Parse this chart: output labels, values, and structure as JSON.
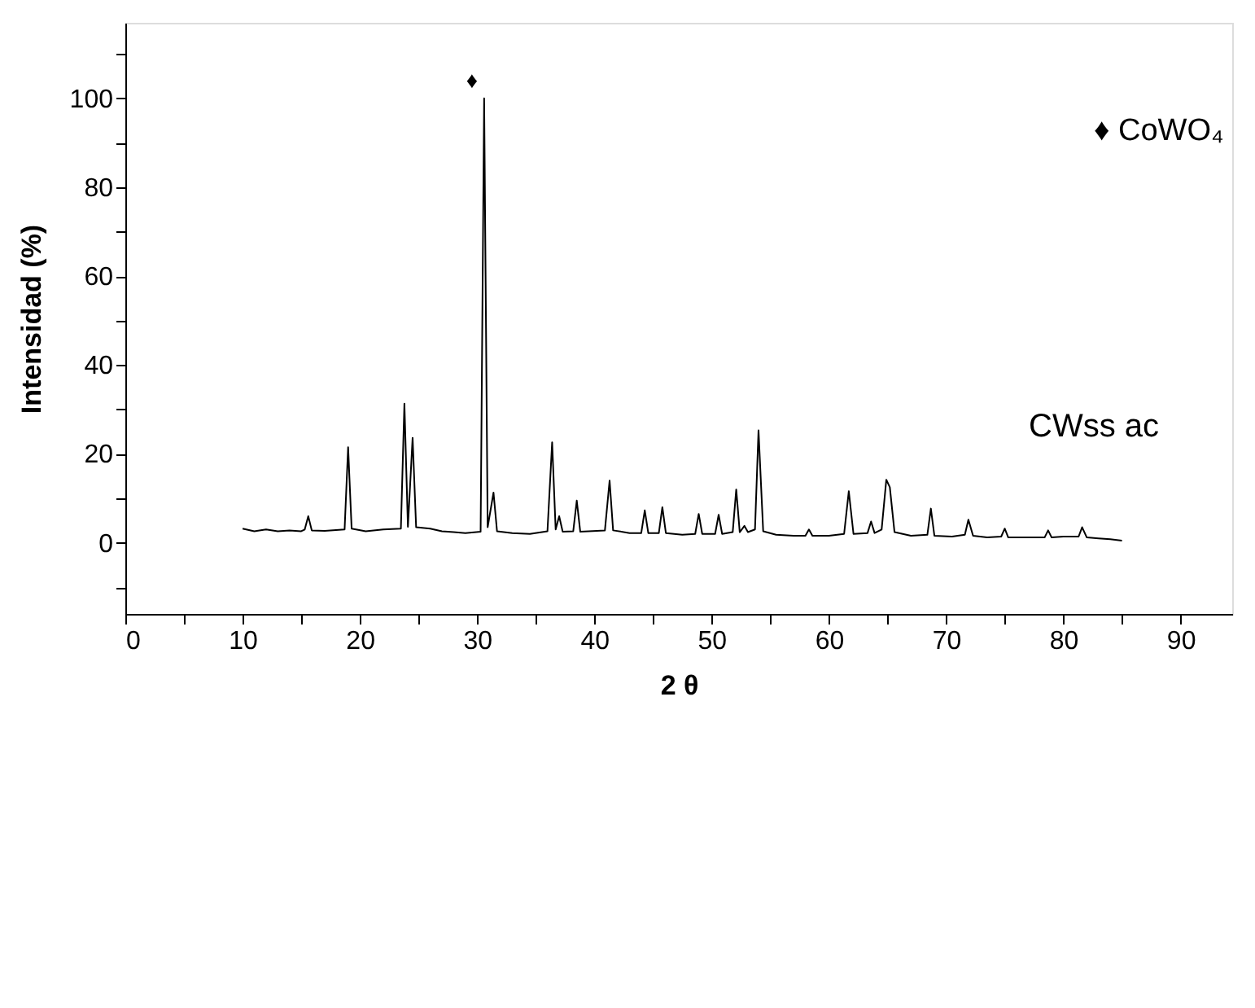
{
  "chart_data": {
    "type": "line",
    "xlabel": "2 θ",
    "ylabel": "Intensidad (%)",
    "xlim": [
      0,
      94.4
    ],
    "ylim": [
      -16,
      117
    ],
    "xticks": [
      0,
      {
        "value": 5,
        "label": null
      },
      10,
      {
        "value": 15,
        "label": null
      },
      20,
      {
        "value": 25,
        "label": null
      },
      30,
      {
        "value": 35,
        "label": null
      },
      40,
      {
        "value": 45,
        "label": null
      },
      50,
      {
        "value": 55,
        "label": null
      },
      60,
      {
        "value": 65,
        "label": null
      },
      70,
      {
        "value": 75,
        "label": null
      },
      80,
      {
        "value": 85,
        "label": null
      },
      90
    ],
    "yticks": [
      {
        "value": -10,
        "label": null
      },
      0,
      {
        "value": 10,
        "label": null
      },
      20,
      {
        "value": 30,
        "label": null
      },
      40,
      {
        "value": 50,
        "label": null
      },
      60,
      {
        "value": 70,
        "label": null
      },
      80,
      {
        "value": 90,
        "label": null
      },
      100,
      {
        "value": 110,
        "label": null
      }
    ],
    "grid": false,
    "marker": "none",
    "line_style": "solid",
    "annotations": [
      "♦",
      "♦ CoWO₄",
      "CWss ac"
    ],
    "series": [
      {
        "color": "#000000",
        "x": [
          10,
          11,
          12,
          13,
          14,
          15,
          15.3,
          15.6,
          15.9,
          17,
          18.7,
          19.0,
          19.3,
          20.5,
          22,
          23.5,
          23.8,
          24.1,
          24.5,
          24.8,
          26,
          27,
          28,
          29,
          30.3,
          30.6,
          30.9,
          31.4,
          31.7,
          33,
          34.5,
          36.0,
          36.4,
          36.7,
          37.0,
          37.3,
          38.2,
          38.5,
          38.8,
          40.9,
          41.3,
          41.6,
          43,
          44.0,
          44.3,
          44.6,
          45.5,
          45.8,
          46.1,
          47.5,
          48.6,
          48.9,
          49.2,
          50.3,
          50.6,
          50.9,
          51.8,
          52.1,
          52.4,
          52.8,
          53.1,
          53.7,
          54.0,
          54.4,
          55.5,
          57,
          58.0,
          58.3,
          58.6,
          60,
          61.3,
          61.7,
          62.1,
          63.3,
          63.6,
          63.9,
          64.5,
          64.9,
          65.2,
          65.6,
          67,
          68.4,
          68.7,
          69.0,
          70.5,
          71.6,
          71.9,
          72.3,
          73.5,
          74.7,
          75.0,
          75.3,
          77,
          78.4,
          78.7,
          79.0,
          80,
          81.3,
          81.6,
          82.0,
          83,
          84,
          85
        ],
        "values": [
          3.2,
          2.6,
          3.0,
          2.6,
          2.8,
          2.6,
          3.0,
          6,
          2.8,
          2.7,
          3.0,
          21.5,
          3.2,
          2.6,
          3.0,
          3.2,
          31.3,
          3.6,
          23.6,
          3.5,
          3.2,
          2.6,
          2.4,
          2.2,
          2.5,
          100,
          3.5,
          11.3,
          2.6,
          2.2,
          2.0,
          2.6,
          22.6,
          3.0,
          6,
          2.5,
          2.6,
          9.5,
          2.5,
          2.8,
          14,
          2.8,
          2.2,
          2.2,
          7.3,
          2.2,
          2.2,
          8,
          2.2,
          1.8,
          2.0,
          6.5,
          2.0,
          2.0,
          6.3,
          2.0,
          2.4,
          12,
          2.4,
          3.8,
          2.4,
          3.0,
          25.3,
          2.6,
          1.8,
          1.6,
          1.6,
          3,
          1.6,
          1.6,
          2.0,
          11.6,
          2.0,
          2.2,
          4.8,
          2.2,
          3.0,
          14.2,
          12.5,
          2.4,
          1.6,
          1.8,
          7.7,
          1.6,
          1.4,
          1.8,
          5.2,
          1.6,
          1.2,
          1.4,
          3.2,
          1.2,
          1.2,
          1.2,
          2.8,
          1.2,
          1.4,
          1.4,
          3.5,
          1.2,
          1.0,
          0.8,
          0.5
        ]
      }
    ]
  }
}
